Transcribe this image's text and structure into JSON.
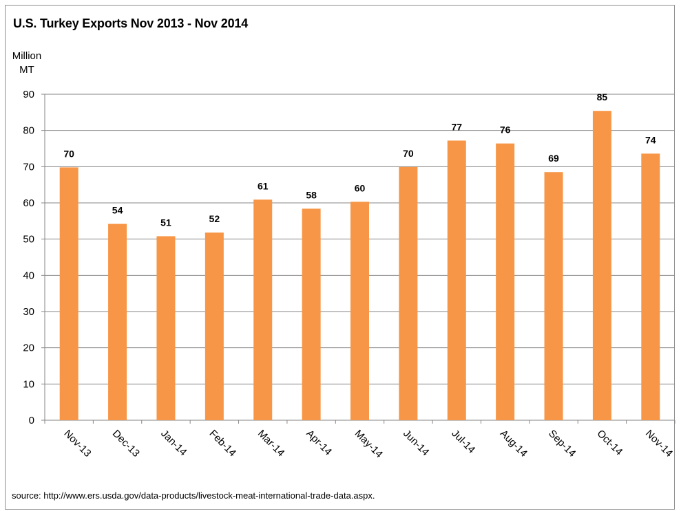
{
  "chart_data": {
    "type": "bar",
    "title": "U.S. Turkey Exports Nov 2013 - Nov 2014",
    "ylabel_line1": "Million",
    "ylabel_line2": "MT",
    "xlabel": "",
    "categories": [
      "Nov-13",
      "Dec-13",
      "Jan-14",
      "Feb-14",
      "Mar-14",
      "Apr-14",
      "May-14",
      "Jun-14",
      "Jul-14",
      "Aug-14",
      "Sep-14",
      "Oct-14",
      "Nov-14"
    ],
    "values": [
      69.8,
      54.2,
      50.8,
      51.8,
      60.9,
      58.4,
      60.3,
      69.9,
      77.2,
      76.4,
      68.5,
      85.4,
      73.6
    ],
    "data_labels": [
      "70",
      "54",
      "51",
      "52",
      "61",
      "58",
      "60",
      "70",
      "77",
      "76",
      "69",
      "85",
      "74"
    ],
    "ylim": [
      0,
      90
    ],
    "yticks": [
      0,
      10,
      20,
      30,
      40,
      50,
      60,
      70,
      80,
      90
    ],
    "bar_color": "#f79646",
    "grid": true,
    "legend": "none"
  },
  "source_text": "source: http://www.ers.usda.gov/data-products/livestock-meat-international-trade-data.aspx."
}
